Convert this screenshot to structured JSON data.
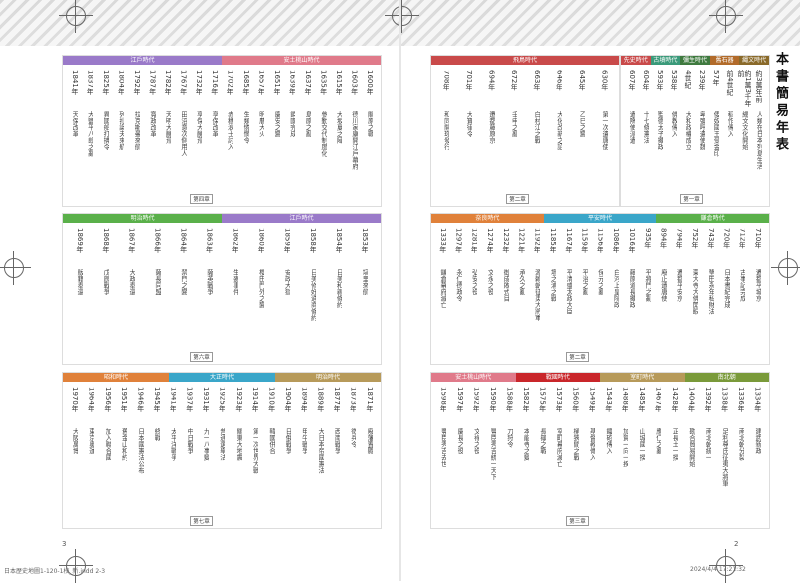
{
  "title": "本書簡易年表",
  "pages": {
    "left_num": "3",
    "right_num": "2"
  },
  "footer": {
    "left": "日本歴史地圖1-120-1校_新.indd 2-3",
    "right": "2024/4/4 17:21:32"
  },
  "sections": [
    {
      "id": "r1",
      "bands": [
        {
          "label": "先史時代",
          "color": "#c94a4a"
        },
        {
          "label": "古墳時代",
          "color": "#3a9a7a"
        },
        {
          "label": "彌生時代",
          "color": "#3f7a3f"
        },
        {
          "label": "舊石器",
          "color": "#b26b2a"
        },
        {
          "label": "繩文時代",
          "color": "#8a6a2a"
        }
      ],
      "chapter": "第一章",
      "entries": [
        {
          "year": "約3萬年前",
          "event": "人類在日本列島生活"
        },
        {
          "year": "約1萬3千年前",
          "event": "繩文文化開始"
        },
        {
          "year": "前4世紀",
          "event": "稻作傳入"
        },
        {
          "year": "57年",
          "event": "倭奴國王受金印"
        },
        {
          "year": "239年",
          "event": "卑彌呼遣使魏"
        },
        {
          "year": "4世紀",
          "event": "大和政權成立"
        },
        {
          "year": "538年",
          "event": "佛教傳入"
        },
        {
          "year": "593年",
          "event": "聖德太子攝政"
        },
        {
          "year": "604年",
          "event": "十七條憲法"
        },
        {
          "year": "607年",
          "event": "遣隋使派遣"
        }
      ]
    },
    {
      "id": "r2",
      "bands": [
        {
          "label": "飛鳥時代",
          "color": "#c94a4a"
        }
      ],
      "chapter": "第二章",
      "entries": [
        {
          "year": "630年",
          "event": "第一次遣唐使"
        },
        {
          "year": "645年",
          "event": "乙巳之變"
        },
        {
          "year": "646年",
          "event": "大化改新之詔"
        },
        {
          "year": "663年",
          "event": "白村江之戰"
        },
        {
          "year": "672年",
          "event": "壬申之亂"
        },
        {
          "year": "694年",
          "event": "遷都藤原京"
        },
        {
          "year": "701年",
          "event": "大寶律令"
        },
        {
          "year": "708年",
          "event": "和同開珎發行"
        }
      ]
    },
    {
      "id": "r3",
      "bands": [
        {
          "label": "奈良時代",
          "color": "#e0813a"
        },
        {
          "label": "平安時代",
          "color": "#3aa6c9"
        },
        {
          "label": "鎌倉時代",
          "color": "#5ab04a"
        }
      ],
      "chapter": "第二章",
      "entries": [
        {
          "year": "710年",
          "event": "遷都平城京"
        },
        {
          "year": "712年",
          "event": "古事記完成"
        },
        {
          "year": "720年",
          "event": "日本書紀完成"
        },
        {
          "year": "743年",
          "event": "墾田永年私財法"
        },
        {
          "year": "752年",
          "event": "東大寺大佛開眼"
        },
        {
          "year": "794年",
          "event": "遷都平安京"
        },
        {
          "year": "894年",
          "event": "廢止遣唐使"
        },
        {
          "year": "935年",
          "event": "平將門之亂"
        },
        {
          "year": "1016年",
          "event": "藤原道長攝政"
        },
        {
          "year": "1086年",
          "event": "白河上皇院政"
        },
        {
          "year": "1156年",
          "event": "保元之亂"
        },
        {
          "year": "1159年",
          "event": "平治之亂"
        },
        {
          "year": "1167年",
          "event": "平清盛太政大臣"
        },
        {
          "year": "1185年",
          "event": "壇之浦之戰"
        },
        {
          "year": "1192年",
          "event": "源賴朝征夷大將軍"
        },
        {
          "year": "1221年",
          "event": "承久之亂"
        },
        {
          "year": "1232年",
          "event": "御成敗式目"
        },
        {
          "year": "1274年",
          "event": "文永之役"
        },
        {
          "year": "1281年",
          "event": "弘安之役"
        },
        {
          "year": "1297年",
          "event": "永仁德政令"
        },
        {
          "year": "1333年",
          "event": "鎌倉幕府滅亡"
        }
      ]
    },
    {
      "id": "r4",
      "bands": [
        {
          "label": "安土桃山時代",
          "color": "#e07a8a"
        },
        {
          "label": "戰國時代",
          "color": "#c9262a"
        },
        {
          "label": "室町時代",
          "color": "#b79a5a"
        },
        {
          "label": "南北朝",
          "color": "#7a9a3a"
        }
      ],
      "chapter": "第三章",
      "entries": [
        {
          "year": "1334年",
          "event": "建武新政"
        },
        {
          "year": "1336年",
          "event": "南北朝分裂"
        },
        {
          "year": "1338年",
          "event": "足利尊氏征夷大將軍"
        },
        {
          "year": "1392年",
          "event": "南北朝統一"
        },
        {
          "year": "1404年",
          "event": "勘合貿易開始"
        },
        {
          "year": "1428年",
          "event": "正長土一揆"
        },
        {
          "year": "1467年",
          "event": "應仁之亂"
        },
        {
          "year": "1485年",
          "event": "山城國一揆"
        },
        {
          "year": "1488年",
          "event": "加賀一向一揆"
        },
        {
          "year": "1543年",
          "event": "鐵砲傳入"
        },
        {
          "year": "1549年",
          "event": "基督教傳入"
        },
        {
          "year": "1560年",
          "event": "桶狹間之戰"
        },
        {
          "year": "1573年",
          "event": "室町幕府滅亡"
        },
        {
          "year": "1575年",
          "event": "長篠之戰"
        },
        {
          "year": "1582年",
          "event": "本能寺之變"
        },
        {
          "year": "1588年",
          "event": "刀狩令"
        },
        {
          "year": "1590年",
          "event": "豐臣秀吉統一天下"
        },
        {
          "year": "1592年",
          "event": "文祿之役"
        },
        {
          "year": "1597年",
          "event": "慶長之役"
        },
        {
          "year": "1598年",
          "event": "豐臣秀吉去世"
        }
      ]
    },
    {
      "id": "l1",
      "bands": [
        {
          "label": "江戶時代",
          "color": "#9a7ac9"
        },
        {
          "label": "安土桃山時代",
          "color": "#e07a8a"
        }
      ],
      "chapter": "第四章",
      "entries": [
        {
          "year": "1600年",
          "event": "關原之戰"
        },
        {
          "year": "1603年",
          "event": "德川家康開江戶幕府"
        },
        {
          "year": "1615年",
          "event": "大坂夏之陣"
        },
        {
          "year": "1635年",
          "event": "參勤交代制度化"
        },
        {
          "year": "1637年",
          "event": "島原之亂"
        },
        {
          "year": "1639年",
          "event": "鎖國完成"
        },
        {
          "year": "1651年",
          "event": "慶安之變"
        },
        {
          "year": "1657年",
          "event": "明曆大火"
        },
        {
          "year": "1685年",
          "event": "生類憐憫令"
        },
        {
          "year": "1702年",
          "event": "赤穗浪士討入"
        },
        {
          "year": "1716年",
          "event": "享保改革"
        },
        {
          "year": "1732年",
          "event": "享保大饑荒"
        },
        {
          "year": "1767年",
          "event": "田沼意次側用人"
        },
        {
          "year": "1782年",
          "event": "天明大饑荒"
        },
        {
          "year": "1787年",
          "event": "寬政改革"
        },
        {
          "year": "1792年",
          "event": "拉克斯曼來航"
        },
        {
          "year": "1804年",
          "event": "列扎諾夫來航"
        },
        {
          "year": "1825年",
          "event": "異國船打拂令"
        },
        {
          "year": "1837年",
          "event": "大鹽平八郎之亂"
        },
        {
          "year": "1841年",
          "event": "天保改革"
        }
      ]
    },
    {
      "id": "l2",
      "bands": [
        {
          "label": "明治時代",
          "color": "#5ab04a"
        },
        {
          "label": "江戶時代",
          "color": "#9a7ac9"
        }
      ],
      "chapter": "第六章",
      "entries": [
        {
          "year": "1853年",
          "event": "培里來航"
        },
        {
          "year": "1854年",
          "event": "日美和親條約"
        },
        {
          "year": "1858年",
          "event": "日美修好通商條約"
        },
        {
          "year": "1859年",
          "event": "安政大獄"
        },
        {
          "year": "1860年",
          "event": "櫻田門外之變"
        },
        {
          "year": "1862年",
          "event": "生麥事件"
        },
        {
          "year": "1863年",
          "event": "薩英戰爭"
        },
        {
          "year": "1864年",
          "event": "禁門之變"
        },
        {
          "year": "1866年",
          "event": "薩長同盟"
        },
        {
          "year": "1867年",
          "event": "大政奉還"
        },
        {
          "year": "1868年",
          "event": "戊辰戰爭"
        },
        {
          "year": "1869年",
          "event": "版籍奉還"
        }
      ]
    },
    {
      "id": "l3",
      "bands": [
        {
          "label": "昭和時代",
          "color": "#e0813a"
        },
        {
          "label": "大正時代",
          "color": "#3aa6c9"
        },
        {
          "label": "明治時代",
          "color": "#b79a5a"
        }
      ],
      "chapter": "第七章",
      "entries": [
        {
          "year": "1871年",
          "event": "廢藩置縣"
        },
        {
          "year": "1873年",
          "event": "徵兵令"
        },
        {
          "year": "1877年",
          "event": "西南戰爭"
        },
        {
          "year": "1889年",
          "event": "大日本帝國憲法"
        },
        {
          "year": "1894年",
          "event": "甲午戰爭"
        },
        {
          "year": "1904年",
          "event": "日俄戰爭"
        },
        {
          "year": "1910年",
          "event": "韓國併合"
        },
        {
          "year": "1914年",
          "event": "第一次世界大戰"
        },
        {
          "year": "1923年",
          "event": "關東大地震"
        },
        {
          "year": "1925年",
          "event": "普通選舉法"
        },
        {
          "year": "1931年",
          "event": "九一八事變"
        },
        {
          "year": "1937年",
          "event": "中日戰爭"
        },
        {
          "year": "1941年",
          "event": "太平洋戰爭"
        },
        {
          "year": "1945年",
          "event": "終戰"
        },
        {
          "year": "1946年",
          "event": "日本國憲法公布"
        },
        {
          "year": "1951年",
          "event": "舊金山和約"
        },
        {
          "year": "1956年",
          "event": "加入聯合國"
        },
        {
          "year": "1964年",
          "event": "東京奧運"
        },
        {
          "year": "1970年",
          "event": "大阪萬博"
        }
      ]
    }
  ]
}
